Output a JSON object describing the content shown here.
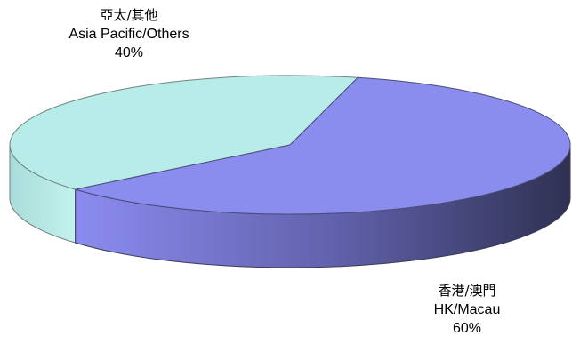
{
  "chart_data": {
    "type": "pie",
    "style": "3d",
    "slices": [
      {
        "label_zh": "亞太/其他",
        "label_en": "Asia Pacific/Others",
        "value": 40,
        "value_label": "40%",
        "color": "#b8ece8"
      },
      {
        "label_zh": "香港/澳門",
        "label_en": "HK/Macau",
        "value": 60,
        "value_label": "60%",
        "color": "#8a8cee"
      }
    ]
  }
}
